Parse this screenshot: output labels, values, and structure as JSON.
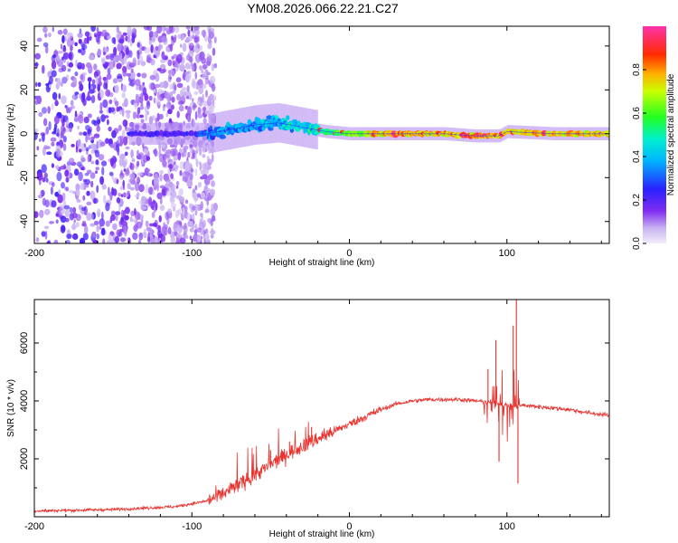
{
  "title": "YM08.2026.066.22.21.C27",
  "colorbar": {
    "label": "Normalized spectral amplitude",
    "range": [
      0,
      1
    ],
    "ticks": [
      "0.0",
      "0.2",
      "0.4",
      "0.6",
      "0.8"
    ]
  },
  "chart_data": [
    {
      "type": "heatmap",
      "title": "YM08.2026.066.22.21.C27",
      "xlabel": "Height of straight line (km)",
      "ylabel": "Frequency (Hz)",
      "xlim": [
        -200,
        165
      ],
      "ylim": [
        -50,
        49
      ],
      "xticks": [
        "-200",
        "-100",
        "0",
        "100"
      ],
      "yticks": [
        "-40",
        "-20",
        "0",
        "20",
        "40"
      ],
      "colorscale": "rainbow (purple=0, blue=0.2, cyan=0.4, green=0.6, yellow/orange=0.8, red/magenta=1.0)",
      "band_centerline": [
        {
          "x": -140,
          "f": 0
        },
        {
          "x": -110,
          "f": 0
        },
        {
          "x": -90,
          "f": 0
        },
        {
          "x": -75,
          "f": 2
        },
        {
          "x": -60,
          "f": 4
        },
        {
          "x": -45,
          "f": 5
        },
        {
          "x": -30,
          "f": 3
        },
        {
          "x": -15,
          "f": 1
        },
        {
          "x": 0,
          "f": 0
        },
        {
          "x": 25,
          "f": 0
        },
        {
          "x": 60,
          "f": 0
        },
        {
          "x": 80,
          "f": -1
        },
        {
          "x": 95,
          "f": -1
        },
        {
          "x": 100,
          "f": 1
        },
        {
          "x": 130,
          "f": 0
        },
        {
          "x": 165,
          "f": 0
        }
      ],
      "noise_region": {
        "x_from": -200,
        "x_to": -100,
        "amplitude": "low (0.0–0.2), scattered across full frequency range"
      }
    },
    {
      "type": "line",
      "xlabel": "Height of straight line (km)",
      "ylabel": "SNR (10 * v/v)",
      "xlim": [
        -200,
        165
      ],
      "ylim": [
        0,
        7500
      ],
      "xticks": [
        "-200",
        "-100",
        "0",
        "100"
      ],
      "yticks": [
        "2000",
        "4000",
        "6000"
      ],
      "series": [
        {
          "name": "SNR",
          "color": "#e8322e",
          "x": [
            -200,
            -150,
            -110,
            -90,
            -80,
            -70,
            -60,
            -50,
            -40,
            -30,
            -20,
            -10,
            0,
            10,
            20,
            30,
            40,
            50,
            60,
            70,
            80,
            90,
            95,
            100,
            105,
            110,
            120,
            130,
            140,
            150,
            165
          ],
          "y": [
            200,
            250,
            350,
            550,
            800,
            1100,
            1450,
            1800,
            2150,
            2450,
            2700,
            2950,
            3200,
            3450,
            3700,
            3900,
            4000,
            4050,
            4050,
            4050,
            4000,
            3950,
            3900,
            3850,
            3800,
            3850,
            3800,
            3750,
            3700,
            3600,
            3500
          ]
        }
      ],
      "spikes": [
        {
          "x": -67,
          "y": 1400
        },
        {
          "x": -50,
          "y": 2300
        },
        {
          "x": -38,
          "y": 2600
        },
        {
          "x": -24,
          "y": 3100
        },
        {
          "x": -16,
          "y": 3050
        },
        {
          "x": 88,
          "y": 5100
        },
        {
          "x": 93,
          "y": 6100
        },
        {
          "x": 95,
          "y": 1900
        },
        {
          "x": 104,
          "y": 6600
        },
        {
          "x": 106,
          "y": 7500
        },
        {
          "x": 107,
          "y": 1150
        }
      ]
    }
  ]
}
